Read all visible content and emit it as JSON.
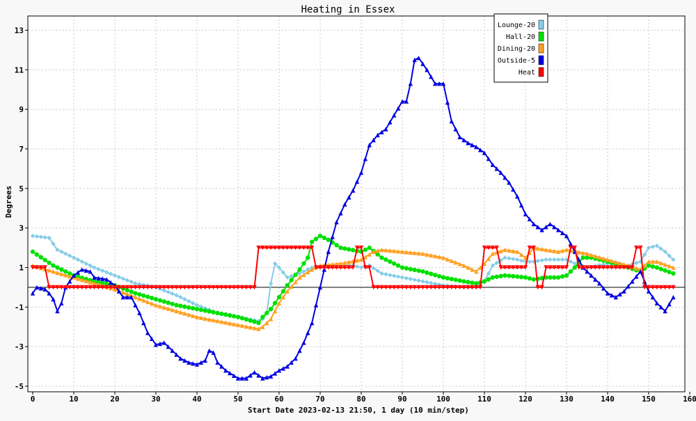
{
  "chart_data": {
    "type": "line",
    "title": "Heating in Essex",
    "xlabel": "Start Date 2023-02-13 21:50, 1 day (10 min/step)",
    "ylabel": "Degrees",
    "xlim": [
      0,
      160
    ],
    "ylim": [
      -5,
      14
    ],
    "xticks": [
      0,
      10,
      20,
      30,
      40,
      50,
      60,
      70,
      80,
      90,
      100,
      110,
      120,
      130,
      140,
      150,
      160
    ],
    "yticks": [
      -5,
      -3,
      -1,
      1,
      3,
      5,
      7,
      9,
      11,
      13
    ],
    "grid": true,
    "legend_position": "top-right",
    "series": [
      {
        "name": "Lounge-20",
        "color": "#87cde6",
        "marker": "diamond",
        "points": [
          [
            0,
            2.6
          ],
          [
            4,
            2.5
          ],
          [
            6,
            1.9
          ],
          [
            10,
            1.5
          ],
          [
            15,
            1.0
          ],
          [
            20,
            0.6
          ],
          [
            25,
            0.2
          ],
          [
            30,
            0
          ],
          [
            35,
            -0.4
          ],
          [
            40,
            -0.9
          ],
          [
            45,
            -1.3
          ],
          [
            50,
            -1.5
          ],
          [
            55,
            -1.7
          ],
          [
            56,
            -1.6
          ],
          [
            57,
            -1.3
          ],
          [
            58,
            0.2
          ],
          [
            59,
            1.2
          ],
          [
            60,
            1.0
          ],
          [
            62,
            0.5
          ],
          [
            65,
            0.7
          ],
          [
            68,
            1.0
          ],
          [
            70,
            1.0
          ],
          [
            72,
            1.1
          ],
          [
            75,
            1.1
          ],
          [
            78,
            1.1
          ],
          [
            80,
            1.0
          ],
          [
            82,
            1.1
          ],
          [
            85,
            0.7
          ],
          [
            90,
            0.5
          ],
          [
            95,
            0.3
          ],
          [
            100,
            0.1
          ],
          [
            105,
            0
          ],
          [
            108,
            0
          ],
          [
            110,
            0.3
          ],
          [
            112,
            1.1
          ],
          [
            115,
            1.5
          ],
          [
            118,
            1.4
          ],
          [
            120,
            1.3
          ],
          [
            122,
            1.3
          ],
          [
            125,
            1.4
          ],
          [
            130,
            1.4
          ],
          [
            132,
            1.2
          ],
          [
            135,
            1.0
          ],
          [
            140,
            1.2
          ],
          [
            145,
            1.1
          ],
          [
            148,
            1.3
          ],
          [
            150,
            2.0
          ],
          [
            152,
            2.1
          ],
          [
            154,
            1.8
          ],
          [
            156,
            1.4
          ]
        ]
      },
      {
        "name": "Hall-20",
        "color": "#00e000",
        "marker": "circle",
        "points": [
          [
            0,
            1.8
          ],
          [
            5,
            1.1
          ],
          [
            10,
            0.6
          ],
          [
            15,
            0.3
          ],
          [
            20,
            0.1
          ],
          [
            25,
            -0.3
          ],
          [
            30,
            -0.6
          ],
          [
            35,
            -0.9
          ],
          [
            40,
            -1.1
          ],
          [
            45,
            -1.3
          ],
          [
            50,
            -1.5
          ],
          [
            55,
            -1.8
          ],
          [
            56,
            -1.5
          ],
          [
            58,
            -1.1
          ],
          [
            60,
            -0.5
          ],
          [
            62,
            0.1
          ],
          [
            65,
            0.9
          ],
          [
            67,
            1.5
          ],
          [
            68,
            2.3
          ],
          [
            70,
            2.6
          ],
          [
            72,
            2.4
          ],
          [
            75,
            2.0
          ],
          [
            80,
            1.8
          ],
          [
            82,
            2.0
          ],
          [
            85,
            1.5
          ],
          [
            90,
            1.0
          ],
          [
            95,
            0.8
          ],
          [
            100,
            0.5
          ],
          [
            105,
            0.3
          ],
          [
            108,
            0.2
          ],
          [
            110,
            0.3
          ],
          [
            112,
            0.5
          ],
          [
            115,
            0.6
          ],
          [
            120,
            0.5
          ],
          [
            122,
            0.4
          ],
          [
            125,
            0.5
          ],
          [
            128,
            0.5
          ],
          [
            130,
            0.6
          ],
          [
            132,
            1.0
          ],
          [
            134,
            1.5
          ],
          [
            136,
            1.5
          ],
          [
            140,
            1.3
          ],
          [
            145,
            1.0
          ],
          [
            148,
            0.8
          ],
          [
            150,
            1.1
          ],
          [
            152,
            1.0
          ],
          [
            156,
            0.7
          ]
        ]
      },
      {
        "name": "Dining-20",
        "color": "#ffa020",
        "marker": "triangle",
        "points": [
          [
            0,
            1.1
          ],
          [
            5,
            0.8
          ],
          [
            10,
            0.5
          ],
          [
            15,
            0.2
          ],
          [
            20,
            -0.1
          ],
          [
            25,
            -0.5
          ],
          [
            30,
            -0.9
          ],
          [
            35,
            -1.2
          ],
          [
            40,
            -1.5
          ],
          [
            45,
            -1.7
          ],
          [
            50,
            -1.9
          ],
          [
            55,
            -2.1
          ],
          [
            56,
            -2.0
          ],
          [
            58,
            -1.6
          ],
          [
            60,
            -0.8
          ],
          [
            62,
            -0.2
          ],
          [
            65,
            0.5
          ],
          [
            68,
            0.9
          ],
          [
            70,
            1.1
          ],
          [
            75,
            1.2
          ],
          [
            80,
            1.4
          ],
          [
            83,
            1.8
          ],
          [
            85,
            1.9
          ],
          [
            90,
            1.8
          ],
          [
            95,
            1.7
          ],
          [
            100,
            1.5
          ],
          [
            105,
            1.1
          ],
          [
            108,
            0.8
          ],
          [
            110,
            1.2
          ],
          [
            112,
            1.7
          ],
          [
            115,
            1.9
          ],
          [
            118,
            1.8
          ],
          [
            120,
            1.5
          ],
          [
            122,
            2.0
          ],
          [
            125,
            1.9
          ],
          [
            128,
            1.8
          ],
          [
            130,
            1.9
          ],
          [
            135,
            1.7
          ],
          [
            140,
            1.4
          ],
          [
            145,
            1.1
          ],
          [
            148,
            0.9
          ],
          [
            150,
            1.3
          ],
          [
            152,
            1.3
          ],
          [
            156,
            1.0
          ]
        ]
      },
      {
        "name": "Outside-5",
        "color": "#0000e0",
        "marker": "triangle",
        "points": [
          [
            0,
            -0.3
          ],
          [
            1,
            0
          ],
          [
            3,
            -0.1
          ],
          [
            4,
            -0.3
          ],
          [
            5,
            -0.6
          ],
          [
            6,
            -1.2
          ],
          [
            7,
            -0.8
          ],
          [
            8,
            0
          ],
          [
            10,
            0.6
          ],
          [
            12,
            0.9
          ],
          [
            14,
            0.8
          ],
          [
            15,
            0.5
          ],
          [
            18,
            0.4
          ],
          [
            20,
            0.1
          ],
          [
            22,
            -0.5
          ],
          [
            24,
            -0.5
          ],
          [
            26,
            -1.3
          ],
          [
            28,
            -2.3
          ],
          [
            30,
            -2.9
          ],
          [
            32,
            -2.8
          ],
          [
            34,
            -3.2
          ],
          [
            36,
            -3.6
          ],
          [
            38,
            -3.8
          ],
          [
            40,
            -3.9
          ],
          [
            42,
            -3.7
          ],
          [
            43,
            -3.2
          ],
          [
            44,
            -3.3
          ],
          [
            45,
            -3.8
          ],
          [
            47,
            -4.2
          ],
          [
            50,
            -4.6
          ],
          [
            52,
            -4.6
          ],
          [
            54,
            -4.3
          ],
          [
            56,
            -4.6
          ],
          [
            58,
            -4.5
          ],
          [
            60,
            -4.2
          ],
          [
            62,
            -4.0
          ],
          [
            64,
            -3.6
          ],
          [
            66,
            -2.8
          ],
          [
            68,
            -1.8
          ],
          [
            70,
            0
          ],
          [
            72,
            1.8
          ],
          [
            74,
            3.3
          ],
          [
            76,
            4.2
          ],
          [
            78,
            4.9
          ],
          [
            80,
            5.8
          ],
          [
            82,
            7.2
          ],
          [
            84,
            7.7
          ],
          [
            86,
            8.0
          ],
          [
            88,
            8.7
          ],
          [
            90,
            9.4
          ],
          [
            91,
            9.4
          ],
          [
            92,
            10.3
          ],
          [
            93,
            11.5
          ],
          [
            94,
            11.6
          ],
          [
            96,
            11.0
          ],
          [
            98,
            10.3
          ],
          [
            100,
            10.3
          ],
          [
            102,
            8.4
          ],
          [
            104,
            7.6
          ],
          [
            106,
            7.3
          ],
          [
            108,
            7.1
          ],
          [
            110,
            6.8
          ],
          [
            112,
            6.2
          ],
          [
            114,
            5.8
          ],
          [
            116,
            5.3
          ],
          [
            118,
            4.6
          ],
          [
            120,
            3.7
          ],
          [
            122,
            3.2
          ],
          [
            124,
            2.9
          ],
          [
            126,
            3.2
          ],
          [
            128,
            2.9
          ],
          [
            130,
            2.6
          ],
          [
            132,
            1.8
          ],
          [
            134,
            1.0
          ],
          [
            136,
            0.6
          ],
          [
            138,
            0.2
          ],
          [
            140,
            -0.3
          ],
          [
            142,
            -0.5
          ],
          [
            144,
            -0.2
          ],
          [
            146,
            0.3
          ],
          [
            148,
            0.8
          ],
          [
            150,
            -0.2
          ],
          [
            152,
            -0.8
          ],
          [
            154,
            -1.2
          ],
          [
            156,
            -0.5
          ]
        ]
      },
      {
        "name": "Heat",
        "color": "#ff0000",
        "marker": "triangle-down",
        "points": [
          [
            0,
            1
          ],
          [
            3,
            1
          ],
          [
            4,
            0
          ],
          [
            54,
            0
          ],
          [
            55,
            2
          ],
          [
            68,
            2
          ],
          [
            69,
            1
          ],
          [
            78,
            1
          ],
          [
            79,
            2
          ],
          [
            80,
            2
          ],
          [
            81,
            1
          ],
          [
            82,
            1
          ],
          [
            83,
            0
          ],
          [
            109,
            0
          ],
          [
            110,
            2
          ],
          [
            113,
            2
          ],
          [
            114,
            1
          ],
          [
            120,
            1
          ],
          [
            121,
            2
          ],
          [
            122,
            2
          ],
          [
            123,
            0
          ],
          [
            124,
            0
          ],
          [
            125,
            1
          ],
          [
            130,
            1
          ],
          [
            131,
            2
          ],
          [
            132,
            2
          ],
          [
            133,
            1
          ],
          [
            146,
            1
          ],
          [
            147,
            2
          ],
          [
            148,
            2
          ],
          [
            149,
            0
          ],
          [
            156,
            0
          ]
        ]
      }
    ]
  }
}
